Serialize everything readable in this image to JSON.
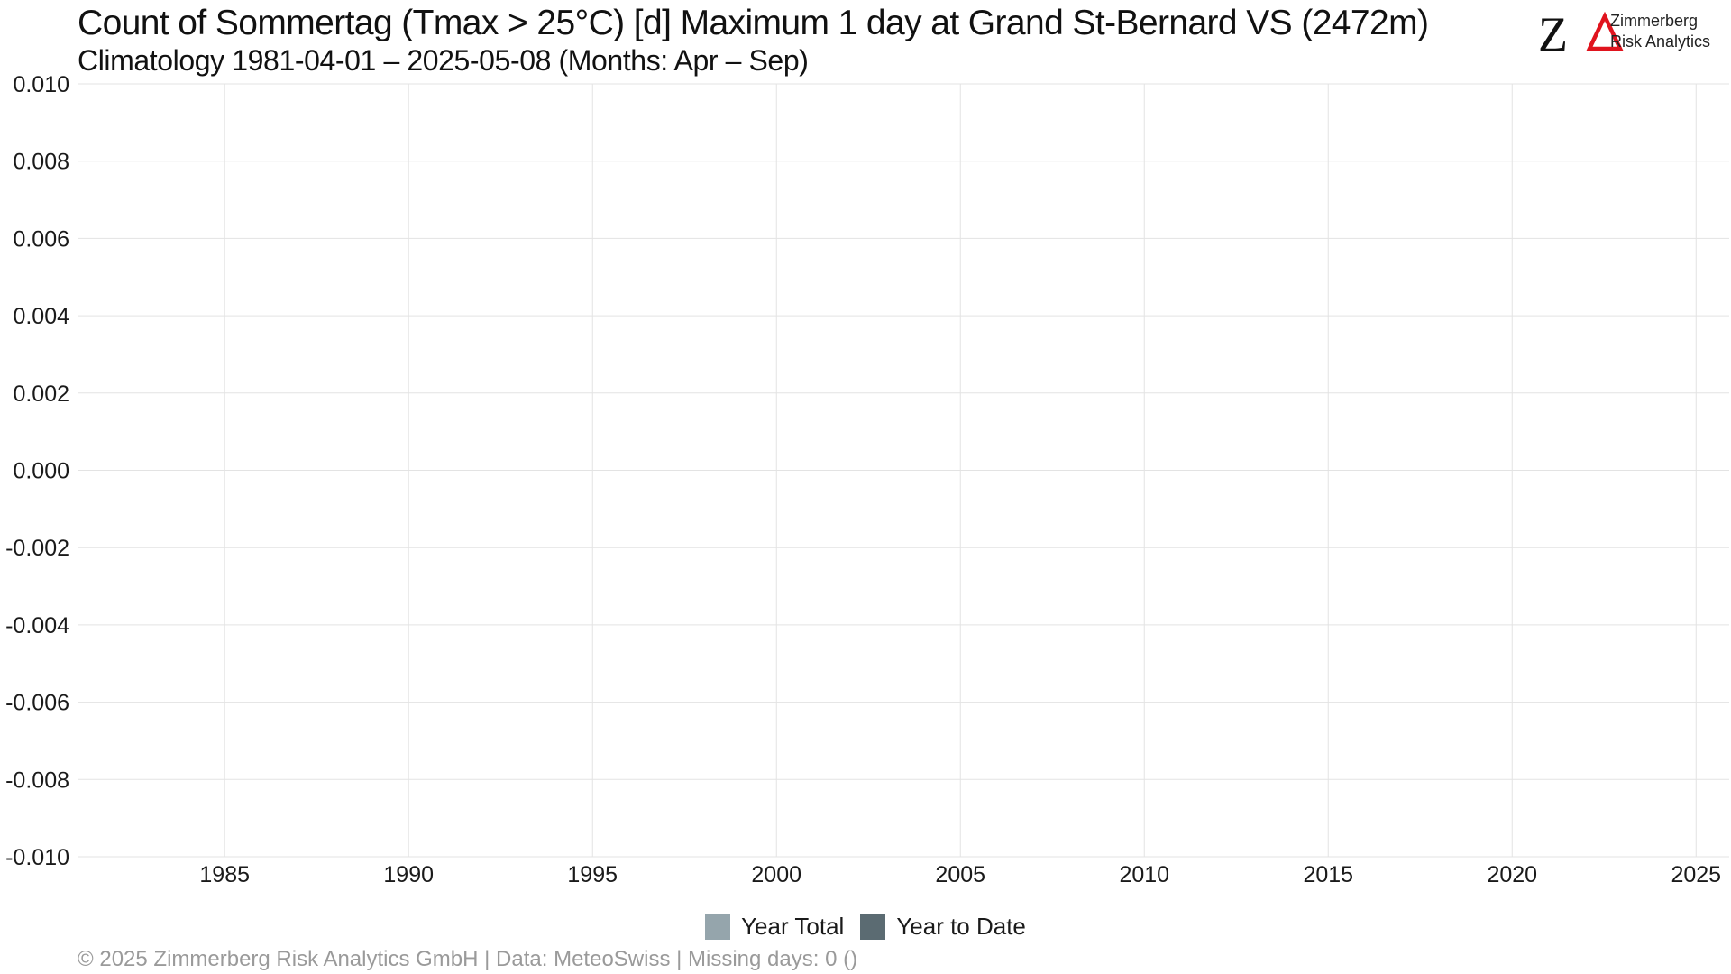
{
  "chart_data": {
    "type": "bar",
    "title": "Count of Sommertag (Tmax > 25°C) [d] Maximum 1 day at Grand St-Bernard  VS (2472m)",
    "subtitle": "Climatology 1981-04-01 – 2025-05-08 (Months: Apr – Sep)",
    "xlabel": "",
    "ylabel": "",
    "xlim": [
      1981,
      2025.9
    ],
    "ylim": [
      -0.01,
      0.01
    ],
    "x_ticks": [
      1985,
      1990,
      1995,
      2000,
      2005,
      2010,
      2015,
      2020,
      2025
    ],
    "y_ticks": [
      -0.01,
      -0.008,
      -0.006,
      -0.004,
      -0.002,
      0.0,
      0.002,
      0.004,
      0.006,
      0.008,
      0.01
    ],
    "y_tick_labels": [
      "-0.010",
      "-0.008",
      "-0.006",
      "-0.004",
      "-0.002",
      "0.000",
      "0.002",
      "0.004",
      "0.006",
      "0.008",
      "0.010"
    ],
    "x_tick_labels": [
      "1985",
      "1990",
      "1995",
      "2000",
      "2005",
      "2010",
      "2015",
      "2020",
      "2025"
    ],
    "grid": true,
    "legend_position": "bottom",
    "series": [
      {
        "name": "Year Total",
        "color": "#95a5ac",
        "values": []
      },
      {
        "name": "Year to Date",
        "color": "#5b6b72",
        "values": []
      }
    ],
    "caption": "©  2025 Zimmerberg Risk Analytics GmbH | Data: MeteoSwiss | Missing days: 0 ()"
  },
  "logo": {
    "mark": "ZΔ",
    "name": "Zimmerberg",
    "tagline": "Risk Analytics",
    "accent_color": "#e0141e"
  }
}
